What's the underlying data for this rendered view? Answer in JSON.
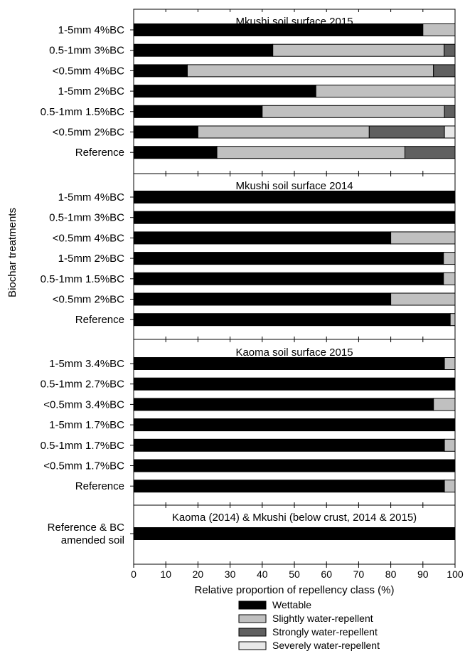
{
  "chart_data": {
    "type": "bar",
    "stacked": true,
    "orientation": "horizontal",
    "xlabel": "Relative proportion of repellency class (%)",
    "ylabel": "Biochar treatments",
    "xlim": [
      0,
      100
    ],
    "xticks": [
      0,
      10,
      20,
      30,
      40,
      50,
      60,
      70,
      80,
      90,
      100
    ],
    "legend_position": "bottom",
    "series": [
      {
        "name": "Wettable",
        "color": "#000000"
      },
      {
        "name": "Slightly water-repellent",
        "color": "#c0c0c0"
      },
      {
        "name": "Strongly water-repellent",
        "color": "#606060"
      },
      {
        "name": "Severely water-repellent",
        "color": "#e8e8e8"
      }
    ],
    "panels": [
      {
        "title": "Mkushi soil surface 2015",
        "categories": [
          "1-5mm 4%BC",
          "0.5-1mm 3%BC",
          "<0.5mm 4%BC",
          "1-5mm 2%BC",
          "0.5-1mm 1.5%BC",
          "<0.5mm 2%BC",
          "Reference"
        ],
        "values": [
          [
            90,
            10,
            0,
            0
          ],
          [
            43.3,
            53.3,
            3.4,
            0
          ],
          [
            16.7,
            76.6,
            6.7,
            0
          ],
          [
            56.7,
            43.3,
            0,
            0
          ],
          [
            40,
            56.7,
            3.3,
            0
          ],
          [
            20,
            53.3,
            23.4,
            3.3
          ],
          [
            25.9,
            58.5,
            15.6,
            0
          ]
        ]
      },
      {
        "title": "Mkushi soil surface 2014",
        "categories": [
          "1-5mm 4%BC",
          "0.5-1mm 3%BC",
          "<0.5mm 4%BC",
          "1-5mm 2%BC",
          "0.5-1mm 1.5%BC",
          "<0.5mm 2%BC",
          "Reference"
        ],
        "values": [
          [
            100,
            0,
            0,
            0
          ],
          [
            100,
            0,
            0,
            0
          ],
          [
            80,
            20,
            0,
            0
          ],
          [
            96.4,
            3.6,
            0,
            0
          ],
          [
            96.4,
            3.6,
            0,
            0
          ],
          [
            80,
            20,
            0,
            0
          ],
          [
            98.5,
            1.5,
            0,
            0
          ]
        ]
      },
      {
        "title": "Kaoma soil surface 2015",
        "categories": [
          "1-5mm 3.4%BC",
          "0.5-1mm 2.7%BC",
          "<0.5mm 3.4%BC",
          "1-5mm 1.7%BC",
          "0.5-1mm 1.7%BC",
          "<0.5mm 1.7%BC",
          "Reference"
        ],
        "values": [
          [
            96.7,
            3.3,
            0,
            0
          ],
          [
            100,
            0,
            0,
            0
          ],
          [
            93.3,
            6.7,
            0,
            0
          ],
          [
            100,
            0,
            0,
            0
          ],
          [
            96.7,
            3.3,
            0,
            0
          ],
          [
            100,
            0,
            0,
            0
          ],
          [
            96.7,
            3.3,
            0,
            0
          ]
        ]
      },
      {
        "title": "Kaoma (2014) & Mkushi (below crust, 2014 & 2015)",
        "categories": [
          "Reference & BC\namended soil"
        ],
        "values": [
          [
            100,
            0,
            0,
            0
          ]
        ]
      }
    ]
  }
}
